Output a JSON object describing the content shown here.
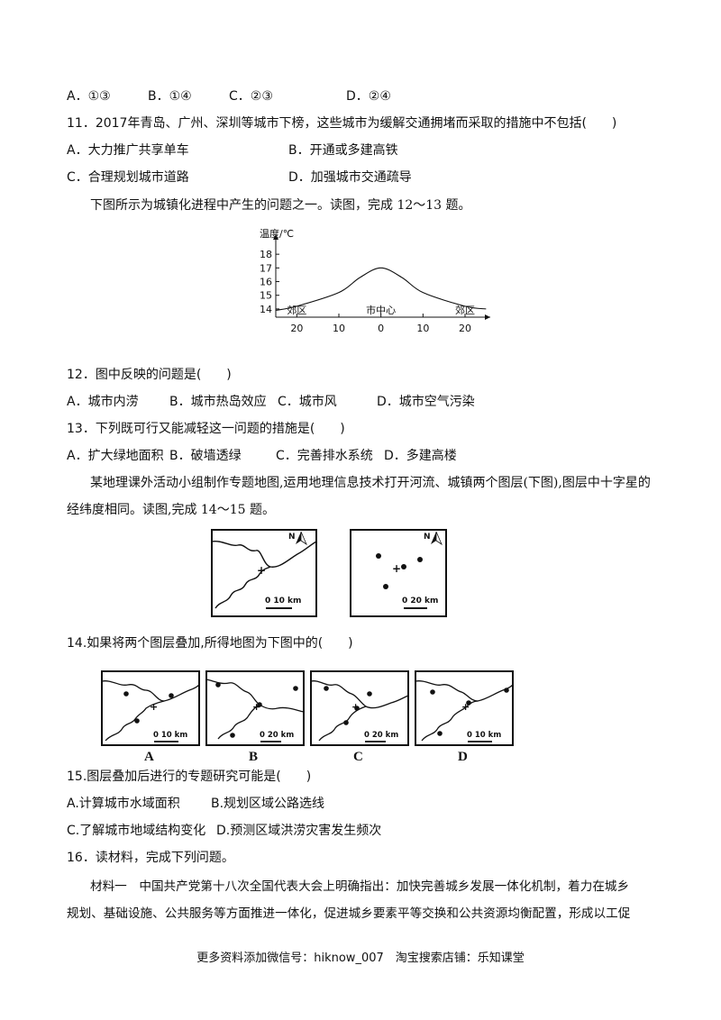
{
  "q10_options": [
    "A．①③",
    "B．①④",
    "C．②③",
    "D．②④"
  ],
  "q11": {
    "stem": "11．2017年青岛、广州、深圳等城市下榜，这些城市为缓解交通拥堵而采取的措施中不包括(　　)",
    "options": [
      "A．大力推广共享单车",
      "B．开通或多建高铁",
      "C．合理规划城市道路",
      "D．加强城市交通疏导"
    ]
  },
  "intro_12_13": "下图所示为城镇化进程中产生的问题之一。读图，完成 12～13 题。",
  "chart_data": {
    "type": "line",
    "ylabel": "温度/℃",
    "y_ticks": [
      "14",
      "15",
      "16",
      "17",
      "18"
    ],
    "x_ticks": [
      "20",
      "10",
      "0",
      "10",
      "20"
    ],
    "region_labels": [
      "郊区",
      "市中心",
      "郊区"
    ],
    "series": [
      {
        "x": [
          -25,
          -20,
          -10,
          -5,
          0,
          5,
          10,
          20,
          25
        ],
        "values": [
          13.9,
          14.2,
          15.2,
          16.3,
          17.0,
          16.3,
          15.2,
          14.2,
          14.0
        ]
      }
    ],
    "xlim": [
      -25,
      26
    ],
    "ylim": [
      13.4,
      18.8
    ],
    "grid": false
  },
  "q12": {
    "stem": "12．图中反映的问题是(　　)",
    "options": [
      "A．城市内涝",
      "B．城市热岛效应",
      "C．城市风",
      "D．城市空气污染"
    ]
  },
  "q13": {
    "stem": "13．下列既可行又能减轻这一问题的措施是(　　)",
    "options": [
      "A．扩大绿地面积",
      "B．破墙透绿",
      "C．完善排水系统",
      "D．多建高楼"
    ]
  },
  "intro_14_15_line1": "某地理课外活动小组制作专题地图,运用地理信息技术打开河流、城镇两个图层(下图),图层中十字星的",
  "intro_14_15_line2": "经纬度相同。读图,完成 14～15 题。",
  "layer_maps": [
    {
      "north": "N",
      "scale": "0  10 km"
    },
    {
      "north": "N",
      "scale": "0  20 km"
    }
  ],
  "q14": {
    "stem": "14.如果将两个图层叠加,所得地图为下图中的(　　)"
  },
  "answer_maps": [
    {
      "letter": "A",
      "scale": "0  10 km"
    },
    {
      "letter": "B",
      "scale": "0  20 km"
    },
    {
      "letter": "C",
      "scale": "0  20 km"
    },
    {
      "letter": "D",
      "scale": "0  10 km"
    }
  ],
  "q15": {
    "stem": "15.图层叠加后进行的专题研究可能是(　　)",
    "options": [
      "A.计算城市水域面积",
      "B.规划区域公路选线",
      "C.了解城市地域结构变化",
      "D.预测区域洪涝灾害发生频次"
    ]
  },
  "q16": {
    "stem": "16．读材料，完成下列问题。",
    "material_line1": "材料一　中国共产党第十八次全国代表大会上明确指出：加快完善城乡发展一体化机制，着力在城乡",
    "material_line2": "规划、基础设施、公共服务等方面推进一体化，促进城乡要素平等交换和公共资源均衡配置，形成以工促"
  },
  "footer": "更多资料添加微信号：hiknow_007　淘宝搜索店铺：乐知课堂"
}
